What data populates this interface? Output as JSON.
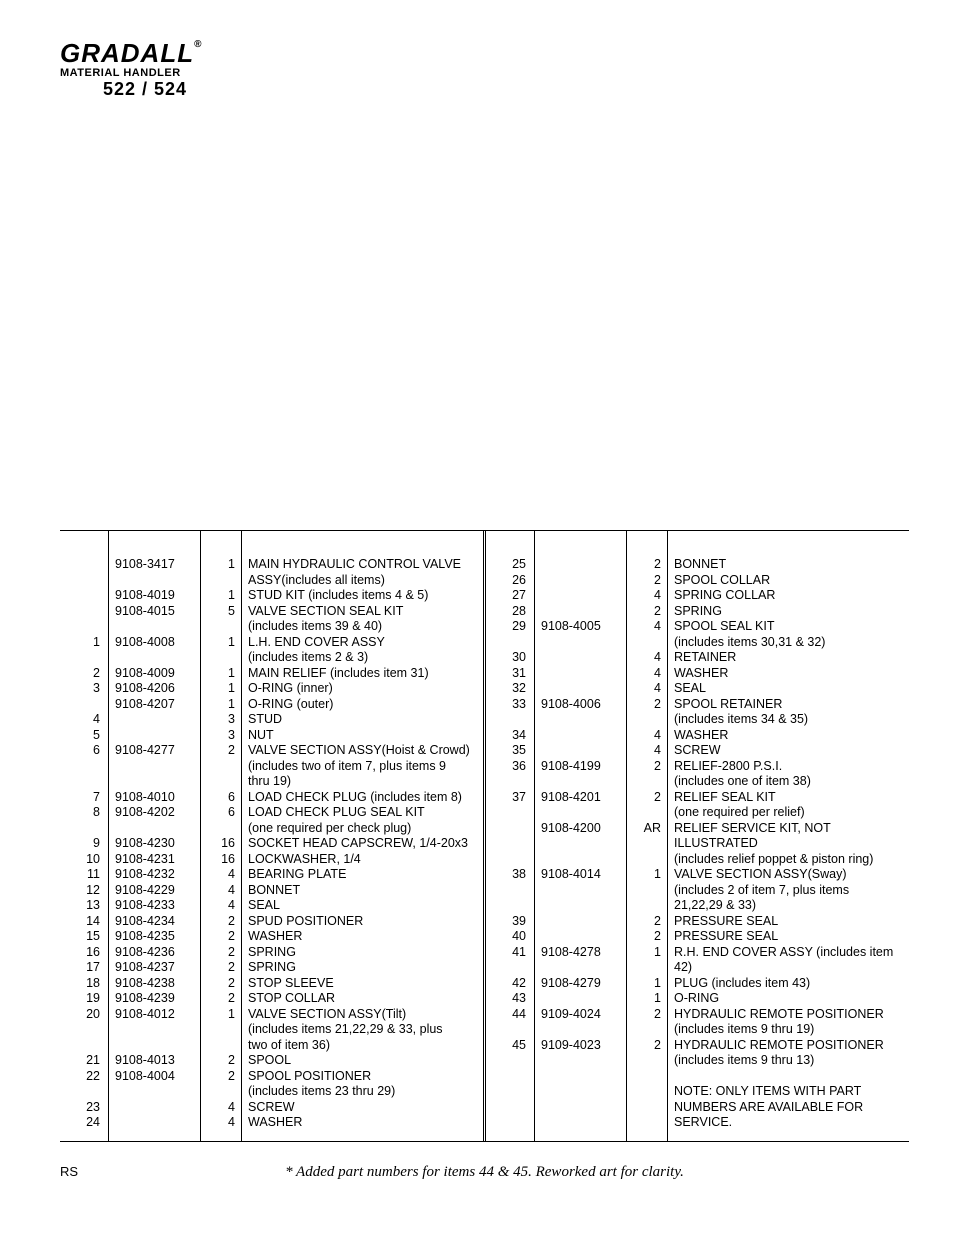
{
  "header": {
    "brand": "GRADALL",
    "reg": "®",
    "sub": "MATERIAL HANDLER",
    "model": "522 / 524"
  },
  "left": [
    {
      "i": "",
      "p": "9108-3417",
      "q": "1",
      "d": "MAIN HYDRAULIC CONTROL VALVE"
    },
    {
      "i": "",
      "p": "",
      "q": "",
      "d": "ASSY(includes all items)"
    },
    {
      "i": "",
      "p": "9108-4019",
      "q": "1",
      "d": "STUD KIT (includes items 4 & 5)"
    },
    {
      "i": "",
      "p": "9108-4015",
      "q": "5",
      "d": "VALVE SECTION SEAL KIT"
    },
    {
      "i": "",
      "p": "",
      "q": "",
      "d": "(includes items 39 & 40)"
    },
    {
      "i": "1",
      "p": "9108-4008",
      "q": "1",
      "d": "L.H. END COVER ASSY"
    },
    {
      "i": "",
      "p": "",
      "q": "",
      "d": "(includes items 2 & 3)"
    },
    {
      "i": "2",
      "p": "9108-4009",
      "q": "1",
      "d": "MAIN RELIEF (includes item 31)"
    },
    {
      "i": "3",
      "p": "9108-4206",
      "q": "1",
      "d": "O-RING (inner)"
    },
    {
      "i": "",
      "p": "9108-4207",
      "q": "1",
      "d": "O-RING (outer)"
    },
    {
      "i": "4",
      "p": "",
      "q": "3",
      "d": "STUD"
    },
    {
      "i": "5",
      "p": "",
      "q": "3",
      "d": "NUT"
    },
    {
      "i": "6",
      "p": "9108-4277",
      "q": "2",
      "d": "VALVE SECTION ASSY(Hoist & Crowd)"
    },
    {
      "i": "",
      "p": "",
      "q": "",
      "d": "(includes two of item 7, plus items 9"
    },
    {
      "i": "",
      "p": "",
      "q": "",
      "d": "thru 19)"
    },
    {
      "i": "7",
      "p": "9108-4010",
      "q": "6",
      "d": "LOAD CHECK PLUG (includes item 8)"
    },
    {
      "i": "8",
      "p": "9108-4202",
      "q": "6",
      "d": "LOAD CHECK PLUG SEAL KIT"
    },
    {
      "i": "",
      "p": "",
      "q": "",
      "d": "(one required per check plug)"
    },
    {
      "i": "9",
      "p": "9108-4230",
      "q": "16",
      "d": "SOCKET HEAD CAPSCREW, 1/4-20x3"
    },
    {
      "i": "10",
      "p": "9108-4231",
      "q": "16",
      "d": "LOCKWASHER, 1/4"
    },
    {
      "i": "11",
      "p": "9108-4232",
      "q": "4",
      "d": "BEARING PLATE"
    },
    {
      "i": "12",
      "p": "9108-4229",
      "q": "4",
      "d": "BONNET"
    },
    {
      "i": "13",
      "p": "9108-4233",
      "q": "4",
      "d": "SEAL"
    },
    {
      "i": "14",
      "p": "9108-4234",
      "q": "2",
      "d": "SPUD POSITIONER"
    },
    {
      "i": "15",
      "p": "9108-4235",
      "q": "2",
      "d": "WASHER"
    },
    {
      "i": "16",
      "p": "9108-4236",
      "q": "2",
      "d": "SPRING"
    },
    {
      "i": "17",
      "p": "9108-4237",
      "q": "2",
      "d": "SPRING"
    },
    {
      "i": "18",
      "p": "9108-4238",
      "q": "2",
      "d": "STOP SLEEVE"
    },
    {
      "i": "19",
      "p": "9108-4239",
      "q": "2",
      "d": "STOP COLLAR"
    },
    {
      "i": "20",
      "p": "9108-4012",
      "q": "1",
      "d": "VALVE SECTION ASSY(Tilt)"
    },
    {
      "i": "",
      "p": "",
      "q": "",
      "d": "(includes items 21,22,29 & 33, plus"
    },
    {
      "i": "",
      "p": "",
      "q": "",
      "d": "two of item 36)"
    },
    {
      "i": "21",
      "p": "9108-4013",
      "q": "2",
      "d": "SPOOL"
    },
    {
      "i": "22",
      "p": "9108-4004",
      "q": "2",
      "d": "SPOOL POSITIONER"
    },
    {
      "i": "",
      "p": "",
      "q": "",
      "d": "(includes items 23 thru 29)"
    },
    {
      "i": "23",
      "p": "",
      "q": "4",
      "d": "SCREW"
    },
    {
      "i": "24",
      "p": "",
      "q": "4",
      "d": "WASHER"
    }
  ],
  "right": [
    {
      "i": "25",
      "p": "",
      "q": "2",
      "d": "BONNET"
    },
    {
      "i": "26",
      "p": "",
      "q": "2",
      "d": "SPOOL COLLAR"
    },
    {
      "i": "27",
      "p": "",
      "q": "4",
      "d": "SPRING COLLAR"
    },
    {
      "i": "28",
      "p": "",
      "q": "2",
      "d": "SPRING"
    },
    {
      "i": "29",
      "p": "9108-4005",
      "q": "4",
      "d": "SPOOL SEAL KIT"
    },
    {
      "i": "",
      "p": "",
      "q": "",
      "d": "(includes items 30,31 & 32)"
    },
    {
      "i": "30",
      "p": "",
      "q": "4",
      "d": "RETAINER"
    },
    {
      "i": "31",
      "p": "",
      "q": "4",
      "d": "WASHER"
    },
    {
      "i": "32",
      "p": "",
      "q": "4",
      "d": "SEAL"
    },
    {
      "i": "33",
      "p": "9108-4006",
      "q": "2",
      "d": "SPOOL RETAINER"
    },
    {
      "i": "",
      "p": "",
      "q": "",
      "d": "(includes items 34 & 35)"
    },
    {
      "i": "34",
      "p": "",
      "q": "4",
      "d": "WASHER"
    },
    {
      "i": "35",
      "p": "",
      "q": "4",
      "d": "SCREW"
    },
    {
      "i": "36",
      "p": "9108-4199",
      "q": "2",
      "d": "RELIEF-2800 P.S.I."
    },
    {
      "i": "",
      "p": "",
      "q": "",
      "d": "(includes one of item 38)"
    },
    {
      "i": "37",
      "p": "9108-4201",
      "q": "2",
      "d": "RELIEF SEAL KIT"
    },
    {
      "i": "",
      "p": "",
      "q": "",
      "d": "(one required per relief)"
    },
    {
      "i": "",
      "p": "9108-4200",
      "q": "AR",
      "d": "RELIEF SERVICE KIT, NOT"
    },
    {
      "i": "",
      "p": "",
      "q": "",
      "d": "ILLUSTRATED"
    },
    {
      "i": "",
      "p": "",
      "q": "",
      "d": "(includes relief poppet & piston ring)"
    },
    {
      "i": "38",
      "p": "9108-4014",
      "q": "1",
      "d": "VALVE SECTION ASSY(Sway)"
    },
    {
      "i": "",
      "p": "",
      "q": "",
      "d": "(includes 2 of item 7, plus items"
    },
    {
      "i": "",
      "p": "",
      "q": "",
      "d": "21,22,29 & 33)"
    },
    {
      "i": "39",
      "p": "",
      "q": "2",
      "d": "PRESSURE SEAL"
    },
    {
      "i": "40",
      "p": "",
      "q": "2",
      "d": "PRESSURE SEAL"
    },
    {
      "i": "41",
      "p": "9108-4278",
      "q": "1",
      "d": "R.H. END COVER ASSY (includes item"
    },
    {
      "i": "",
      "p": "",
      "q": "",
      "d": "42)"
    },
    {
      "i": "42",
      "p": "9108-4279",
      "q": "1",
      "d": "PLUG (includes item 43)"
    },
    {
      "i": "43",
      "p": "",
      "q": "1",
      "d": "O-RING"
    },
    {
      "i": "44",
      "p": "9109-4024",
      "q": "2",
      "d": "HYDRAULIC REMOTE POSITIONER"
    },
    {
      "i": "",
      "p": "",
      "q": "",
      "d": "(includes items 9 thru 19)"
    },
    {
      "i": "45",
      "p": "9109-4023",
      "q": "2",
      "d": "HYDRAULIC REMOTE POSITIONER"
    },
    {
      "i": "",
      "p": "",
      "q": "",
      "d": "(includes items 9 thru 13)"
    },
    {
      "i": "",
      "p": "",
      "q": "",
      "d": ""
    },
    {
      "i": "",
      "p": "",
      "q": "",
      "d": "NOTE: ONLY ITEMS WITH PART"
    },
    {
      "i": "",
      "p": "",
      "q": "",
      "d": "NUMBERS ARE AVAILABLE FOR"
    },
    {
      "i": "",
      "p": "",
      "q": "",
      "d": "SERVICE."
    }
  ],
  "footer": {
    "left": "RS",
    "note": "* Added part numbers for items 44 & 45. Reworked art for clarity."
  }
}
